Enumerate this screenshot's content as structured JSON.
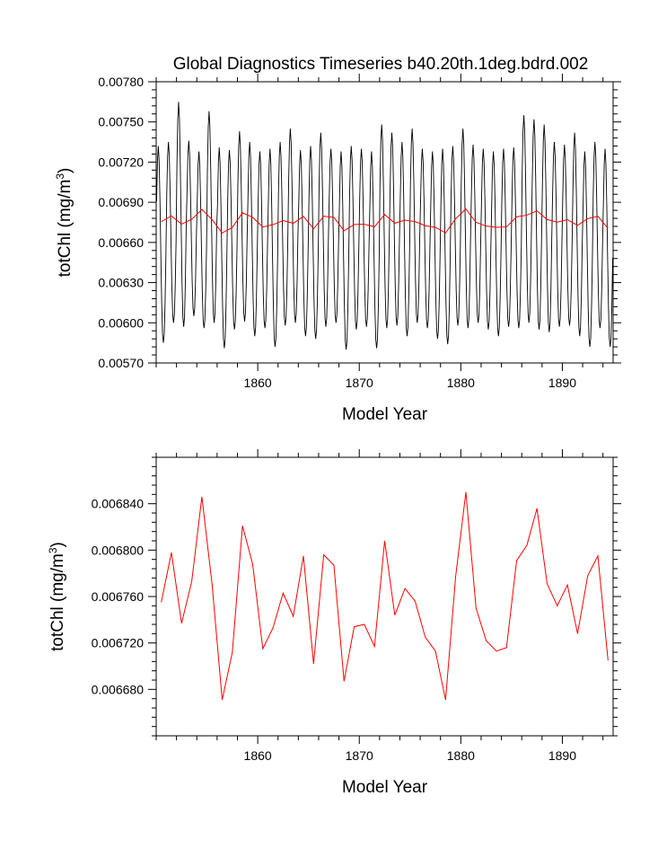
{
  "title": "Global Diagnostics Timeseries b40.20th.1deg.bdrd.002",
  "colors": {
    "monthly": "#000000",
    "annual": "#ff0000",
    "axis": "#000000"
  },
  "chart_data": [
    {
      "type": "line",
      "title": "Global Diagnostics Timeseries b40.20th.1deg.bdrd.002",
      "xlabel": "Model Year",
      "ylabel": "totChl (mg/m",
      "ylabel_sup": "3",
      "ylabel_end": ")",
      "xlim": [
        1850,
        1895
      ],
      "ylim": [
        0.0057,
        0.0078
      ],
      "xticks": [
        1860,
        1870,
        1880,
        1890
      ],
      "xtick_labels": [
        "1860",
        "1870",
        "1880",
        "1890"
      ],
      "yticks": [
        0.0057,
        0.006,
        0.0063,
        0.0066,
        0.0069,
        0.0072,
        0.0075,
        0.0078
      ],
      "ytick_labels": [
        "0.00570",
        "0.00600",
        "0.00630",
        "0.00660",
        "0.00690",
        "0.00720",
        "0.00750",
        "0.00780"
      ],
      "grid": false,
      "series": [
        {
          "color": "#000000",
          "x_start": 1850.0417,
          "x_step": 0.0833333,
          "annual_peaks": [
            0.00732,
            0.00735,
            0.00765,
            0.00736,
            0.00728,
            0.00758,
            0.00731,
            0.00729,
            0.00743,
            0.00735,
            0.00728,
            0.0073,
            0.00735,
            0.00745,
            0.00729,
            0.00732,
            0.00742,
            0.0073,
            0.00728,
            0.00732,
            0.0073,
            0.00728,
            0.00748,
            0.00742,
            0.00735,
            0.00745,
            0.0073,
            0.00728,
            0.0073,
            0.00732,
            0.00745,
            0.00733,
            0.0073,
            0.00728,
            0.0073,
            0.00731,
            0.00755,
            0.00752,
            0.00748,
            0.00735,
            0.00733,
            0.00742,
            0.00728,
            0.00735,
            0.0073
          ],
          "annual_troughs": [
            0.00585,
            0.006,
            0.00597,
            0.00605,
            0.00596,
            0.006,
            0.00581,
            0.00595,
            0.00601,
            0.0059,
            0.00596,
            0.00582,
            0.00598,
            0.006,
            0.0059,
            0.00588,
            0.00597,
            0.006,
            0.0058,
            0.00595,
            0.00597,
            0.00581,
            0.00596,
            0.00598,
            0.0059,
            0.006,
            0.00596,
            0.00588,
            0.00584,
            0.00598,
            0.00596,
            0.006,
            0.00595,
            0.0059,
            0.00597,
            0.00596,
            0.006,
            0.00595,
            0.00593,
            0.00597,
            0.00598,
            0.0059,
            0.00582,
            0.00596,
            0.00582
          ]
        },
        {
          "color": "#ff0000",
          "x": [
            1850.5,
            1851.5,
            1852.5,
            1853.5,
            1854.5,
            1855.5,
            1856.5,
            1857.5,
            1858.5,
            1859.5,
            1860.5,
            1861.5,
            1862.5,
            1863.5,
            1864.5,
            1865.5,
            1866.5,
            1867.5,
            1868.5,
            1869.5,
            1870.5,
            1871.5,
            1872.5,
            1873.5,
            1874.5,
            1875.5,
            1876.5,
            1877.5,
            1878.5,
            1879.5,
            1880.5,
            1881.5,
            1882.5,
            1883.5,
            1884.5,
            1885.5,
            1886.5,
            1887.5,
            1888.5,
            1889.5,
            1890.5,
            1891.5,
            1892.5,
            1893.5,
            1894.5
          ],
          "values": [
            0.006755,
            0.006798,
            0.006737,
            0.006773,
            0.006846,
            0.006771,
            0.006671,
            0.006712,
            0.006821,
            0.006788,
            0.006715,
            0.006733,
            0.006763,
            0.006743,
            0.006795,
            0.006702,
            0.006796,
            0.006787,
            0.006687,
            0.006734,
            0.006736,
            0.006717,
            0.006808,
            0.006744,
            0.006767,
            0.006756,
            0.006725,
            0.006713,
            0.006671,
            0.006778,
            0.00685,
            0.00675,
            0.006722,
            0.006713,
            0.006716,
            0.006791,
            0.006804,
            0.006836,
            0.006771,
            0.006752,
            0.00677,
            0.006728,
            0.006778,
            0.006795,
            0.006705
          ]
        }
      ]
    },
    {
      "type": "line",
      "title": "",
      "xlabel": "Model Year",
      "ylabel": "totChl (mg/m",
      "ylabel_sup": "3",
      "ylabel_end": ")",
      "xlim": [
        1850,
        1895
      ],
      "ylim": [
        0.00664,
        0.00688
      ],
      "xticks": [
        1860,
        1870,
        1880,
        1890
      ],
      "xtick_labels": [
        "1860",
        "1870",
        "1880",
        "1890"
      ],
      "yticks": [
        0.00668,
        0.00672,
        0.00676,
        0.0068,
        0.00684
      ],
      "ytick_labels": [
        "0.006680",
        "0.006720",
        "0.006760",
        "0.006800",
        "0.006840"
      ],
      "grid": false,
      "series": [
        {
          "color": "#ff0000",
          "x": [
            1850.5,
            1851.5,
            1852.5,
            1853.5,
            1854.5,
            1855.5,
            1856.5,
            1857.5,
            1858.5,
            1859.5,
            1860.5,
            1861.5,
            1862.5,
            1863.5,
            1864.5,
            1865.5,
            1866.5,
            1867.5,
            1868.5,
            1869.5,
            1870.5,
            1871.5,
            1872.5,
            1873.5,
            1874.5,
            1875.5,
            1876.5,
            1877.5,
            1878.5,
            1879.5,
            1880.5,
            1881.5,
            1882.5,
            1883.5,
            1884.5,
            1885.5,
            1886.5,
            1887.5,
            1888.5,
            1889.5,
            1890.5,
            1891.5,
            1892.5,
            1893.5,
            1894.5
          ],
          "values": [
            0.006755,
            0.006798,
            0.006737,
            0.006773,
            0.006846,
            0.006771,
            0.006671,
            0.006712,
            0.006821,
            0.006788,
            0.006715,
            0.006733,
            0.006763,
            0.006743,
            0.006795,
            0.006702,
            0.006796,
            0.006787,
            0.006687,
            0.006734,
            0.006736,
            0.006717,
            0.006808,
            0.006744,
            0.006767,
            0.006756,
            0.006725,
            0.006713,
            0.006671,
            0.006778,
            0.00685,
            0.00675,
            0.006722,
            0.006713,
            0.006716,
            0.006791,
            0.006804,
            0.006836,
            0.006771,
            0.006752,
            0.00677,
            0.006728,
            0.006778,
            0.006795,
            0.006705
          ]
        }
      ]
    }
  ]
}
